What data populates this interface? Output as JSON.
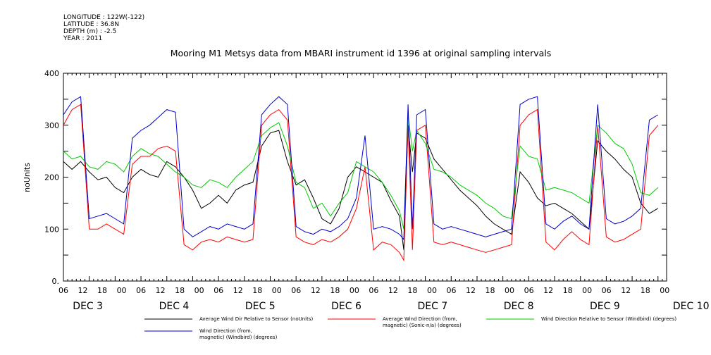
{
  "header": {
    "longitude": "LONGITUDE : 122W(-122)",
    "latitude": "LATITUDE : 36.8N",
    "depth": "DEPTH (m) : -2.5",
    "year": "YEAR : 2011"
  },
  "chart_data": {
    "type": "line",
    "title": "Mooring M1 Metsys data from MBARI instrument id 1396 at original sampling intervals",
    "ylabel": "noUnits",
    "ylim": [
      0,
      400
    ],
    "yticks": [
      "0.",
      "100",
      "200",
      "300",
      "400"
    ],
    "x_hour_labels": [
      "06",
      "12",
      "18",
      "00",
      "06",
      "12",
      "18",
      "00",
      "06",
      "12",
      "18",
      "00",
      "06",
      "12",
      "18",
      "00",
      "06",
      "12",
      "18",
      "00",
      "06",
      "12",
      "18",
      "00",
      "06",
      "12",
      "18",
      "00",
      "06",
      "12",
      "18",
      "00"
    ],
    "date_labels": [
      "DEC  3",
      "DEC  4",
      "DEC  5",
      "DEC  6",
      "DEC  7",
      "DEC  8",
      "DEC  9",
      "DEC 10"
    ],
    "xlim_hours": [
      0,
      140
    ],
    "legend_placement": "bottom",
    "series": [
      {
        "name": "Average Wind Dir Relative to Sensor (noUnits)",
        "color": "#000000",
        "points": [
          [
            0,
            230
          ],
          [
            2,
            215
          ],
          [
            4,
            230
          ],
          [
            6,
            210
          ],
          [
            8,
            195
          ],
          [
            10,
            200
          ],
          [
            12,
            180
          ],
          [
            14,
            170
          ],
          [
            16,
            200
          ],
          [
            18,
            215
          ],
          [
            20,
            205
          ],
          [
            22,
            200
          ],
          [
            24,
            230
          ],
          [
            26,
            220
          ],
          [
            28,
            200
          ],
          [
            30,
            175
          ],
          [
            32,
            140
          ],
          [
            34,
            150
          ],
          [
            36,
            165
          ],
          [
            38,
            150
          ],
          [
            40,
            175
          ],
          [
            42,
            185
          ],
          [
            44,
            190
          ],
          [
            46,
            260
          ],
          [
            48,
            285
          ],
          [
            50,
            290
          ],
          [
            52,
            230
          ],
          [
            54,
            185
          ],
          [
            56,
            195
          ],
          [
            58,
            160
          ],
          [
            60,
            120
          ],
          [
            62,
            110
          ],
          [
            64,
            140
          ],
          [
            66,
            200
          ],
          [
            68,
            220
          ],
          [
            70,
            210
          ],
          [
            72,
            200
          ],
          [
            74,
            190
          ],
          [
            76,
            155
          ],
          [
            78,
            125
          ],
          [
            79,
            60
          ],
          [
            80,
            300
          ],
          [
            81,
            210
          ],
          [
            82,
            285
          ],
          [
            84,
            275
          ],
          [
            86,
            235
          ],
          [
            88,
            215
          ],
          [
            90,
            195
          ],
          [
            92,
            175
          ],
          [
            94,
            160
          ],
          [
            96,
            145
          ],
          [
            98,
            125
          ],
          [
            100,
            110
          ],
          [
            102,
            100
          ],
          [
            104,
            90
          ],
          [
            106,
            210
          ],
          [
            108,
            190
          ],
          [
            110,
            160
          ],
          [
            112,
            145
          ],
          [
            114,
            150
          ],
          [
            116,
            140
          ],
          [
            118,
            130
          ],
          [
            120,
            115
          ],
          [
            122,
            100
          ],
          [
            124,
            270
          ],
          [
            126,
            250
          ],
          [
            128,
            235
          ],
          [
            130,
            215
          ],
          [
            132,
            200
          ],
          [
            134,
            150
          ],
          [
            136,
            130
          ],
          [
            138,
            140
          ]
        ]
      },
      {
        "name": "Average Wind Direction (from, magnetic) (Sonic-n/a) (degrees)",
        "color": "#ff0000",
        "points": [
          [
            0,
            300
          ],
          [
            2,
            330
          ],
          [
            4,
            340
          ],
          [
            6,
            100
          ],
          [
            8,
            100
          ],
          [
            10,
            110
          ],
          [
            12,
            100
          ],
          [
            14,
            90
          ],
          [
            16,
            225
          ],
          [
            18,
            240
          ],
          [
            20,
            240
          ],
          [
            22,
            255
          ],
          [
            24,
            260
          ],
          [
            26,
            250
          ],
          [
            28,
            70
          ],
          [
            30,
            60
          ],
          [
            32,
            75
          ],
          [
            34,
            80
          ],
          [
            36,
            75
          ],
          [
            38,
            85
          ],
          [
            40,
            80
          ],
          [
            42,
            75
          ],
          [
            44,
            80
          ],
          [
            46,
            300
          ],
          [
            48,
            320
          ],
          [
            50,
            330
          ],
          [
            52,
            310
          ],
          [
            54,
            85
          ],
          [
            56,
            75
          ],
          [
            58,
            70
          ],
          [
            60,
            80
          ],
          [
            62,
            75
          ],
          [
            64,
            85
          ],
          [
            66,
            100
          ],
          [
            68,
            140
          ],
          [
            70,
            220
          ],
          [
            72,
            60
          ],
          [
            74,
            75
          ],
          [
            76,
            70
          ],
          [
            78,
            55
          ],
          [
            79,
            40
          ],
          [
            80,
            300
          ],
          [
            81,
            60
          ],
          [
            82,
            290
          ],
          [
            84,
            300
          ],
          [
            86,
            75
          ],
          [
            88,
            70
          ],
          [
            90,
            75
          ],
          [
            92,
            70
          ],
          [
            94,
            65
          ],
          [
            96,
            60
          ],
          [
            98,
            55
          ],
          [
            100,
            60
          ],
          [
            102,
            65
          ],
          [
            104,
            70
          ],
          [
            106,
            300
          ],
          [
            108,
            320
          ],
          [
            110,
            330
          ],
          [
            112,
            75
          ],
          [
            114,
            60
          ],
          [
            116,
            80
          ],
          [
            118,
            95
          ],
          [
            120,
            80
          ],
          [
            122,
            70
          ],
          [
            124,
            300
          ],
          [
            126,
            85
          ],
          [
            128,
            75
          ],
          [
            130,
            80
          ],
          [
            132,
            90
          ],
          [
            134,
            100
          ],
          [
            136,
            280
          ],
          [
            138,
            300
          ]
        ]
      },
      {
        "name": "Wind Direction Relative to Sensor (Windbird) (degrees)",
        "color": "#00cc00",
        "points": [
          [
            0,
            250
          ],
          [
            2,
            235
          ],
          [
            4,
            240
          ],
          [
            6,
            220
          ],
          [
            8,
            215
          ],
          [
            10,
            230
          ],
          [
            12,
            225
          ],
          [
            14,
            210
          ],
          [
            16,
            240
          ],
          [
            18,
            255
          ],
          [
            20,
            245
          ],
          [
            22,
            240
          ],
          [
            24,
            225
          ],
          [
            26,
            210
          ],
          [
            28,
            200
          ],
          [
            30,
            185
          ],
          [
            32,
            180
          ],
          [
            34,
            195
          ],
          [
            36,
            190
          ],
          [
            38,
            180
          ],
          [
            40,
            200
          ],
          [
            42,
            215
          ],
          [
            44,
            230
          ],
          [
            46,
            280
          ],
          [
            48,
            295
          ],
          [
            50,
            305
          ],
          [
            52,
            260
          ],
          [
            54,
            190
          ],
          [
            56,
            180
          ],
          [
            58,
            140
          ],
          [
            60,
            150
          ],
          [
            62,
            125
          ],
          [
            64,
            150
          ],
          [
            66,
            170
          ],
          [
            68,
            230
          ],
          [
            70,
            220
          ],
          [
            72,
            210
          ],
          [
            74,
            190
          ],
          [
            76,
            165
          ],
          [
            78,
            135
          ],
          [
            79,
            100
          ],
          [
            80,
            320
          ],
          [
            81,
            250
          ],
          [
            82,
            290
          ],
          [
            84,
            265
          ],
          [
            86,
            215
          ],
          [
            88,
            210
          ],
          [
            90,
            200
          ],
          [
            92,
            185
          ],
          [
            94,
            175
          ],
          [
            96,
            165
          ],
          [
            98,
            150
          ],
          [
            100,
            140
          ],
          [
            102,
            125
          ],
          [
            104,
            120
          ],
          [
            106,
            260
          ],
          [
            108,
            240
          ],
          [
            110,
            235
          ],
          [
            112,
            175
          ],
          [
            114,
            180
          ],
          [
            116,
            175
          ],
          [
            118,
            170
          ],
          [
            120,
            160
          ],
          [
            122,
            150
          ],
          [
            124,
            300
          ],
          [
            126,
            285
          ],
          [
            128,
            265
          ],
          [
            130,
            255
          ],
          [
            132,
            225
          ],
          [
            134,
            170
          ],
          [
            136,
            165
          ],
          [
            138,
            180
          ]
        ]
      },
      {
        "name": "Wind Direction (from, magnetic) (Windbird) (degrees)",
        "color": "#0000cc",
        "points": [
          [
            0,
            320
          ],
          [
            2,
            345
          ],
          [
            4,
            355
          ],
          [
            6,
            120
          ],
          [
            8,
            125
          ],
          [
            10,
            130
          ],
          [
            12,
            120
          ],
          [
            14,
            110
          ],
          [
            16,
            275
          ],
          [
            18,
            290
          ],
          [
            20,
            300
          ],
          [
            22,
            315
          ],
          [
            24,
            330
          ],
          [
            26,
            325
          ],
          [
            28,
            100
          ],
          [
            30,
            85
          ],
          [
            32,
            95
          ],
          [
            34,
            105
          ],
          [
            36,
            100
          ],
          [
            38,
            110
          ],
          [
            40,
            105
          ],
          [
            42,
            100
          ],
          [
            44,
            110
          ],
          [
            46,
            320
          ],
          [
            48,
            340
          ],
          [
            50,
            355
          ],
          [
            52,
            340
          ],
          [
            54,
            105
          ],
          [
            56,
            95
          ],
          [
            58,
            90
          ],
          [
            60,
            100
          ],
          [
            62,
            95
          ],
          [
            64,
            105
          ],
          [
            66,
            120
          ],
          [
            68,
            160
          ],
          [
            70,
            280
          ],
          [
            72,
            100
          ],
          [
            74,
            105
          ],
          [
            76,
            100
          ],
          [
            78,
            90
          ],
          [
            79,
            80
          ],
          [
            80,
            340
          ],
          [
            81,
            100
          ],
          [
            82,
            320
          ],
          [
            84,
            330
          ],
          [
            86,
            110
          ],
          [
            88,
            100
          ],
          [
            90,
            105
          ],
          [
            92,
            100
          ],
          [
            94,
            95
          ],
          [
            96,
            90
          ],
          [
            98,
            85
          ],
          [
            100,
            90
          ],
          [
            102,
            95
          ],
          [
            104,
            100
          ],
          [
            106,
            340
          ],
          [
            108,
            350
          ],
          [
            110,
            355
          ],
          [
            112,
            110
          ],
          [
            114,
            100
          ],
          [
            116,
            115
          ],
          [
            118,
            125
          ],
          [
            120,
            110
          ],
          [
            122,
            100
          ],
          [
            124,
            340
          ],
          [
            126,
            120
          ],
          [
            128,
            110
          ],
          [
            130,
            115
          ],
          [
            132,
            125
          ],
          [
            134,
            140
          ],
          [
            136,
            310
          ],
          [
            138,
            320
          ]
        ]
      }
    ],
    "legend": [
      {
        "label_line1": "Average Wind Dir Relative to Sensor (noUnits)",
        "label_line2": "",
        "color": "#000000"
      },
      {
        "label_line1": "Average Wind Direction (from,",
        "label_line2": "magnetic) (Sonic-n/a) (degrees)",
        "color": "#ff0000"
      },
      {
        "label_line1": "Wind Direction Relative to Sensor (Windbird) (degrees)",
        "label_line2": "",
        "color": "#00cc00"
      },
      {
        "label_line1": "Wind Direction (from,",
        "label_line2": "magnetic) (Windbird) (degrees)",
        "color": "#0000cc"
      }
    ]
  }
}
